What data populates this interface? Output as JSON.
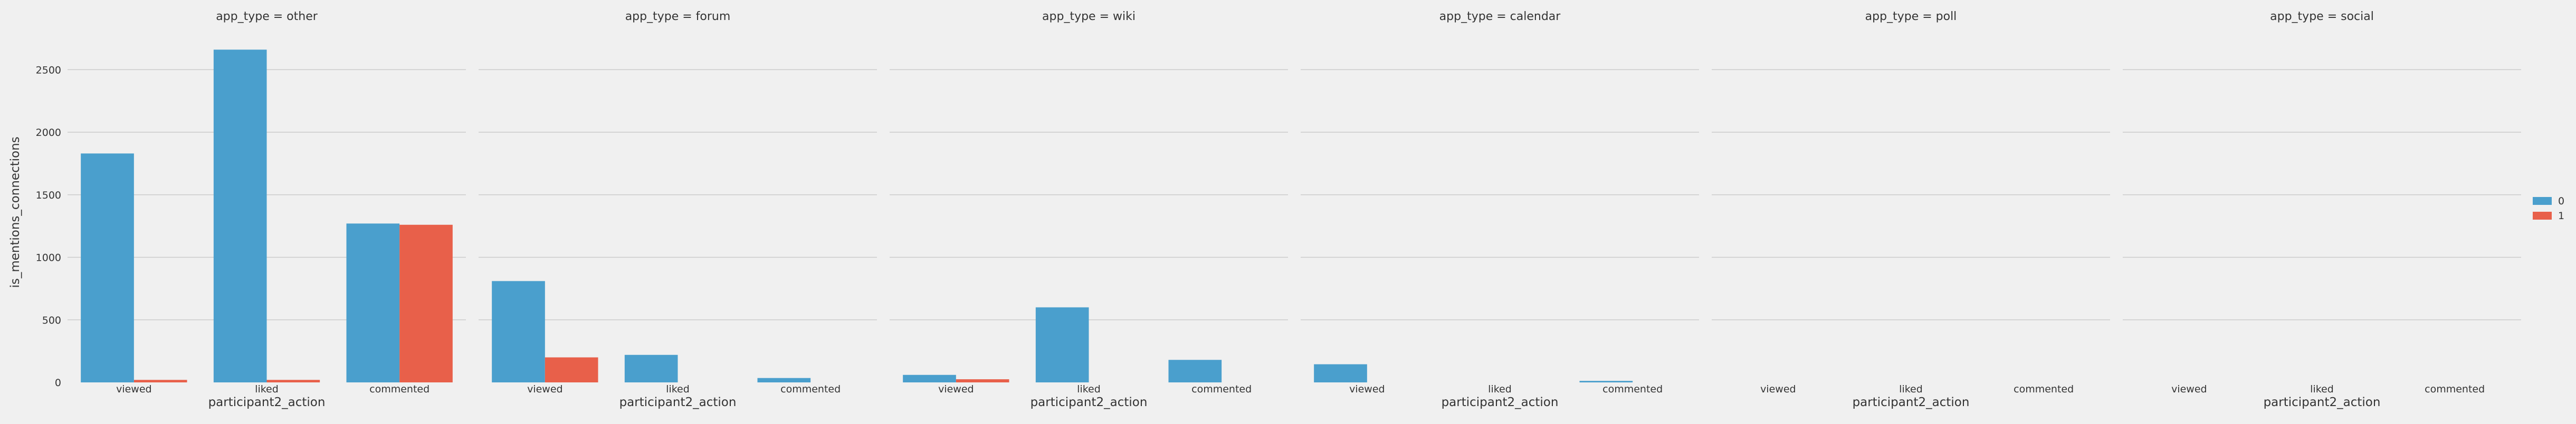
{
  "chart_data": {
    "type": "bar",
    "facet_column_label_template": "app_type = {}",
    "facets": [
      "other",
      "forum",
      "wiki",
      "calendar",
      "poll",
      "social"
    ],
    "categories": [
      "viewed",
      "liked",
      "commented"
    ],
    "xlabel": "participant2_action",
    "ylabel": "is_mentions_connections",
    "ylim": [
      0,
      2720
    ],
    "yticks": [
      0,
      500,
      1000,
      1500,
      2000,
      2500
    ],
    "grid": true,
    "legend": {
      "title": "",
      "position": "right",
      "entries": [
        "0",
        "1"
      ]
    },
    "series": [
      {
        "name": "0",
        "color": "#4a9fcd",
        "values": {
          "other": [
            1830,
            2660,
            1270
          ],
          "forum": [
            810,
            220,
            35
          ],
          "wiki": [
            60,
            600,
            180
          ],
          "calendar": [
            145,
            0,
            12
          ],
          "poll": [
            0,
            0,
            0
          ],
          "social": [
            0,
            0,
            0
          ]
        }
      },
      {
        "name": "1",
        "color": "#e8604a",
        "values": {
          "other": [
            20,
            20,
            1260
          ],
          "forum": [
            200,
            0,
            0
          ],
          "wiki": [
            25,
            0,
            0
          ],
          "calendar": [
            0,
            0,
            0
          ],
          "poll": [
            0,
            0,
            0
          ],
          "social": [
            0,
            0,
            0
          ]
        }
      }
    ]
  }
}
